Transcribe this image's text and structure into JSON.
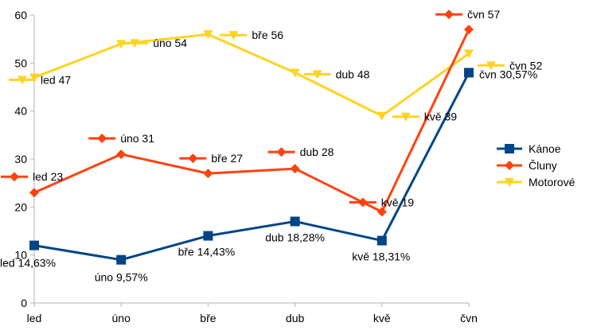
{
  "chart_data": {
    "type": "line",
    "categories": [
      "led",
      "úno",
      "bře",
      "dub",
      "kvě",
      "čvn"
    ],
    "ylim": [
      0,
      60
    ],
    "yticks": [
      0,
      10,
      20,
      30,
      40,
      50,
      60
    ],
    "grid": false,
    "legend_position": "right",
    "series": [
      {
        "name": "Kánoe",
        "color": "#004586",
        "marker": "square",
        "values": [
          12,
          9,
          14,
          17,
          13,
          48
        ],
        "labels": [
          "led 14,63%",
          "úno 9,57%",
          "bře 14,43%",
          "dub 18,28%",
          "kvě 18,31%",
          "čvn 30,57%"
        ]
      },
      {
        "name": "Čluny",
        "color": "#ff420e",
        "marker": "diamond",
        "values": [
          23,
          31,
          27,
          28,
          19,
          57
        ],
        "labels": [
          "led 23",
          "úno 31",
          "bře 27",
          "dub 28",
          "kvě 19",
          "čvn 57"
        ]
      },
      {
        "name": "Motorové",
        "color": "#ffd320",
        "marker": "triangle-down",
        "values": [
          47,
          54,
          56,
          48,
          39,
          52
        ],
        "labels": [
          "led 47",
          "úno 54",
          "bře 56",
          "dub 48",
          "kvě 39",
          "čvn 52"
        ]
      }
    ]
  }
}
